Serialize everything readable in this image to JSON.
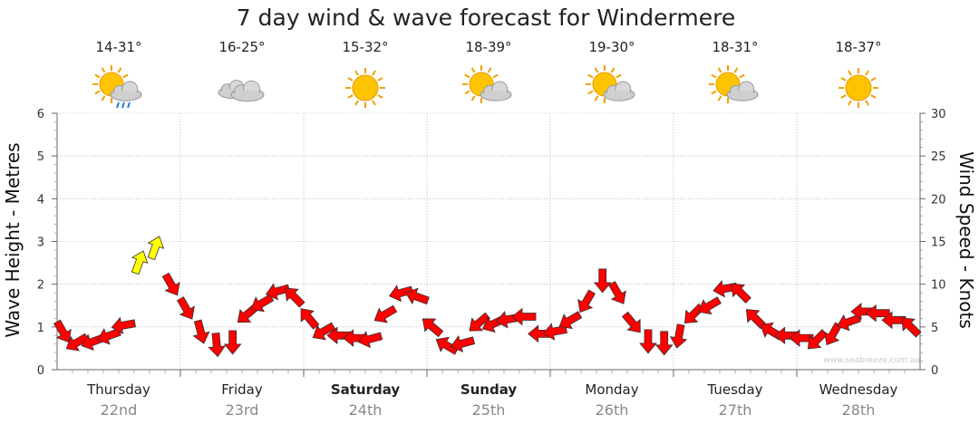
{
  "title": "7 day wind & wave forecast for Windermere",
  "left_axis_label": "Wave Height - Metres",
  "right_axis_label": "Wind Speed - Knots",
  "watermark": "www.seabreeze.com.au",
  "colors": {
    "arrow": "#ff0000",
    "arrow_strong": "#ffff00",
    "arrow_stroke": "#333333",
    "grid": "#999999"
  },
  "days": [
    {
      "name": "Thursday",
      "date": "22nd",
      "temp": "14-31°",
      "icon": "sun-cloud-rain-icon",
      "bold": false
    },
    {
      "name": "Friday",
      "date": "23rd",
      "temp": "16-25°",
      "icon": "cloud-icon",
      "bold": false
    },
    {
      "name": "Saturday",
      "date": "24th",
      "temp": "15-32°",
      "icon": "sun-icon",
      "bold": true
    },
    {
      "name": "Sunday",
      "date": "25th",
      "temp": "18-39°",
      "icon": "sun-cloud-icon",
      "bold": true
    },
    {
      "name": "Monday",
      "date": "26th",
      "temp": "19-30°",
      "icon": "sun-cloud-icon",
      "bold": false
    },
    {
      "name": "Tuesday",
      "date": "27th",
      "temp": "18-31°",
      "icon": "sun-cloud-icon",
      "bold": false
    },
    {
      "name": "Wednesday",
      "date": "28th",
      "temp": "18-37°",
      "icon": "sun-icon",
      "bold": false
    }
  ],
  "chart_data": {
    "type": "scatter",
    "title": "7 day wind & wave forecast for Windermere",
    "x_categories": [
      "Thursday 22nd",
      "Friday 23rd",
      "Saturday 24th",
      "Sunday 25th",
      "Monday 26th",
      "Tuesday 27th",
      "Wednesday 28th"
    ],
    "y_left": {
      "label": "Wave Height - Metres",
      "range": [
        0,
        6
      ],
      "ticks": [
        "0",
        "1",
        "2",
        "3",
        "4",
        "5",
        "6"
      ]
    },
    "y_right": {
      "label": "Wind Speed - Knots",
      "range": [
        0,
        30
      ],
      "ticks": [
        "0",
        "5",
        "10",
        "15",
        "20",
        "25",
        "30"
      ]
    },
    "grid": true,
    "series": [
      {
        "x_day": [
          0.0,
          0.12,
          0.25,
          0.38,
          0.5,
          0.62,
          0.75,
          0.88,
          1.0,
          1.12,
          1.25,
          1.38,
          1.5,
          1.62,
          1.75,
          1.88,
          2.0,
          2.12,
          2.25,
          2.38,
          2.5,
          2.62,
          2.75,
          2.88,
          3.0,
          3.12,
          3.25,
          3.38,
          3.5,
          3.62,
          3.75,
          3.88,
          4.0,
          4.12,
          4.25,
          4.38,
          4.5,
          4.62,
          4.75,
          4.88,
          5.0,
          5.12,
          5.25,
          5.38,
          5.5,
          5.62,
          5.75,
          5.88,
          6.0,
          6.12,
          6.25,
          6.38,
          6.5,
          6.62,
          6.75,
          6.88
        ],
        "wind_knots": [
          4.5,
          3.2,
          3.3,
          4.0,
          5.2,
          12.5,
          14.2,
          10.0,
          7.2,
          4.5,
          3.0,
          3.3,
          6.5,
          7.8,
          9.2,
          8.5,
          6.0,
          4.5,
          4.0,
          3.7,
          3.6,
          6.5,
          9.0,
          8.5,
          5.0,
          2.8,
          3.1,
          5.5,
          5.4,
          5.9,
          6.2,
          4.2,
          4.5,
          5.8,
          8.0,
          10.5,
          9.0,
          5.5,
          3.4,
          3.2,
          4.0,
          6.5,
          7.5,
          9.5,
          9.0,
          6.0,
          4.5,
          4.0,
          3.7,
          3.5,
          4.2,
          5.6,
          6.8,
          6.6,
          5.8,
          5.0
        ],
        "wind_dir_deg": [
          330,
          60,
          70,
          70,
          80,
          200,
          200,
          330,
          330,
          345,
          355,
          0,
          50,
          60,
          75,
          135,
          140,
          60,
          90,
          90,
          75,
          60,
          75,
          110,
          130,
          120,
          75,
          50,
          65,
          80,
          90,
          90,
          80,
          60,
          30,
          0,
          330,
          320,
          0,
          0,
          10,
          45,
          60,
          80,
          135,
          135,
          120,
          90,
          90,
          45,
          30,
          70,
          90,
          90,
          90,
          135
        ]
      }
    ]
  }
}
